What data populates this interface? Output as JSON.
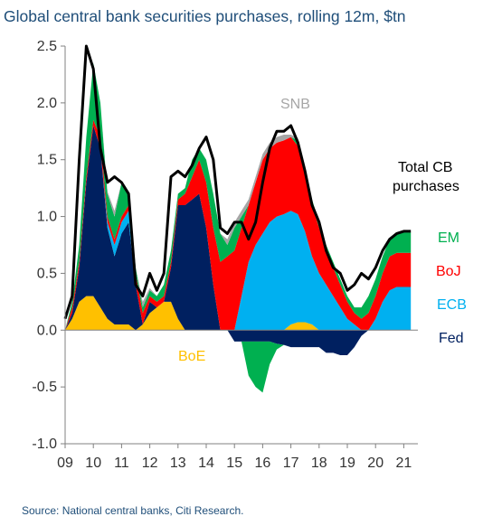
{
  "title": "Global central bank securities purchases, rolling 12m, $tn",
  "source": "Source: National central banks, Citi Research.",
  "colors": {
    "BoE": "#ffc000",
    "Fed": "#002060",
    "ECB": "#00b0f0",
    "BoJ": "#ff0000",
    "EM": "#00b050",
    "SNB": "#a6a6a6",
    "Total": "#000000"
  },
  "labels": {
    "snb": "SNB",
    "total_line1": "Total CB",
    "total_line2": "purchases",
    "em": "EM",
    "boj": "BoJ",
    "ecb": "ECB",
    "fed": "Fed",
    "boe": "BoE"
  },
  "chart_data": {
    "type": "area",
    "title": "Global central bank securities purchases, rolling 12m, $tn",
    "xlabel": "",
    "ylabel": "",
    "ylim": [
      -1.0,
      2.5
    ],
    "xlim": [
      2009.0,
      2021.5
    ],
    "y_ticks": [
      "2.5",
      "2.0",
      "1.5",
      "1.0",
      "0.5",
      "0.0",
      "-0.5",
      "-1.0"
    ],
    "x_ticks": [
      "09",
      "10",
      "11",
      "12",
      "13",
      "14",
      "15",
      "16",
      "17",
      "18",
      "19",
      "20",
      "21"
    ],
    "x": [
      2009.0,
      2009.25,
      2009.5,
      2009.75,
      2010.0,
      2010.25,
      2010.5,
      2010.75,
      2011.0,
      2011.25,
      2011.5,
      2011.75,
      2012.0,
      2012.25,
      2012.5,
      2012.75,
      2013.0,
      2013.25,
      2013.5,
      2013.75,
      2014.0,
      2014.25,
      2014.5,
      2014.75,
      2015.0,
      2015.25,
      2015.5,
      2015.75,
      2016.0,
      2016.25,
      2016.5,
      2016.75,
      2017.0,
      2017.25,
      2017.5,
      2017.75,
      2018.0,
      2018.25,
      2018.5,
      2018.75,
      2019.0,
      2019.25,
      2019.5,
      2019.75,
      2020.0,
      2020.25,
      2020.5,
      2020.75,
      2021.0,
      2021.25
    ],
    "series": [
      {
        "name": "BoE",
        "values": [
          0.0,
          0.1,
          0.25,
          0.3,
          0.3,
          0.2,
          0.1,
          0.05,
          0.05,
          0.05,
          0.0,
          0.05,
          0.15,
          0.2,
          0.25,
          0.25,
          0.1,
          0.0,
          0.0,
          0.0,
          0.0,
          0.0,
          0.0,
          0.0,
          0.0,
          0.0,
          0.0,
          0.0,
          0.0,
          0.0,
          0.0,
          0.0,
          0.05,
          0.07,
          0.07,
          0.05,
          0.0,
          0.0,
          0.0,
          0.0,
          0.0,
          0.0,
          0.0,
          0.0,
          0.0,
          0.0,
          0.0,
          0.0,
          0.0,
          0.0
        ]
      },
      {
        "name": "Fed",
        "values": [
          0.0,
          0.05,
          0.3,
          1.0,
          1.5,
          1.4,
          0.8,
          0.6,
          0.8,
          0.9,
          0.4,
          0.0,
          0.1,
          0.0,
          0.0,
          0.3,
          1.0,
          1.1,
          1.15,
          1.2,
          0.9,
          0.4,
          0.0,
          0.0,
          -0.1,
          -0.1,
          -0.1,
          -0.1,
          -0.1,
          -0.1,
          -0.12,
          -0.13,
          -0.15,
          -0.15,
          -0.15,
          -0.15,
          -0.15,
          -0.2,
          -0.2,
          -0.22,
          -0.22,
          -0.15,
          -0.05,
          0.0,
          0.0,
          0.0,
          0.0,
          0.0,
          0.0,
          0.0
        ]
      },
      {
        "name": "ECB",
        "values": [
          0.0,
          0.0,
          0.0,
          0.0,
          0.0,
          0.0,
          0.05,
          0.1,
          0.1,
          0.1,
          0.0,
          0.0,
          0.0,
          0.0,
          0.0,
          0.0,
          0.0,
          0.0,
          0.0,
          0.0,
          0.0,
          0.0,
          0.0,
          0.0,
          0.0,
          0.3,
          0.6,
          0.75,
          0.85,
          0.95,
          1.0,
          1.02,
          1.0,
          0.95,
          0.8,
          0.6,
          0.5,
          0.4,
          0.3,
          0.2,
          0.1,
          0.05,
          0.0,
          0.0,
          0.1,
          0.25,
          0.35,
          0.38,
          0.38,
          0.38
        ]
      },
      {
        "name": "BoJ",
        "values": [
          0.0,
          0.05,
          0.05,
          0.05,
          0.05,
          0.1,
          0.05,
          0.05,
          0.05,
          0.05,
          0.1,
          0.1,
          0.05,
          0.05,
          0.05,
          0.05,
          0.05,
          0.1,
          0.2,
          0.3,
          0.4,
          0.5,
          0.6,
          0.65,
          0.7,
          0.6,
          0.5,
          0.55,
          0.65,
          0.65,
          0.65,
          0.65,
          0.65,
          0.6,
          0.5,
          0.45,
          0.4,
          0.3,
          0.25,
          0.2,
          0.15,
          0.1,
          0.1,
          0.15,
          0.2,
          0.25,
          0.3,
          0.3,
          0.3,
          0.3
        ]
      },
      {
        "name": "EM",
        "values": [
          0.0,
          0.05,
          0.15,
          0.35,
          0.5,
          0.3,
          0.2,
          0.2,
          0.3,
          0.1,
          0.05,
          0.05,
          0.05,
          0.05,
          0.1,
          0.1,
          0.05,
          0.05,
          0.15,
          0.1,
          0.2,
          0.3,
          0.25,
          0.1,
          0.2,
          0.1,
          -0.3,
          -0.4,
          -0.45,
          -0.2,
          -0.05,
          0.0,
          0.0,
          0.05,
          0.05,
          0.05,
          0.05,
          0.05,
          0.05,
          0.05,
          0.05,
          0.05,
          0.1,
          0.15,
          0.15,
          0.15,
          0.15,
          0.18,
          0.18,
          0.18
        ]
      },
      {
        "name": "SNB",
        "values": [
          0.0,
          0.0,
          0.0,
          0.0,
          0.0,
          0.0,
          0.02,
          0.05,
          0.0,
          0.0,
          0.0,
          0.05,
          0.02,
          0.0,
          0.0,
          0.0,
          0.0,
          0.0,
          0.0,
          0.0,
          0.0,
          0.0,
          0.0,
          0.05,
          0.05,
          0.05,
          0.05,
          0.05,
          0.05,
          0.05,
          0.05,
          0.05,
          0.02,
          0.02,
          0.0,
          0.0,
          0.0,
          0.0,
          0.0,
          0.0,
          0.0,
          0.0,
          0.0,
          0.0,
          0.0,
          0.0,
          0.0,
          0.0,
          0.0,
          0.0
        ]
      },
      {
        "name": "Total CB purchases",
        "values": [
          0.1,
          0.3,
          1.5,
          2.5,
          2.3,
          1.6,
          1.3,
          1.35,
          1.3,
          1.2,
          0.4,
          0.3,
          0.5,
          0.35,
          0.5,
          1.35,
          1.4,
          1.35,
          1.45,
          1.6,
          1.7,
          1.5,
          0.9,
          0.85,
          0.95,
          0.95,
          0.8,
          0.95,
          1.3,
          1.6,
          1.75,
          1.75,
          1.8,
          1.65,
          1.4,
          1.1,
          0.95,
          0.7,
          0.55,
          0.5,
          0.35,
          0.4,
          0.5,
          0.45,
          0.55,
          0.7,
          0.8,
          0.85,
          0.87,
          0.87
        ]
      }
    ]
  }
}
